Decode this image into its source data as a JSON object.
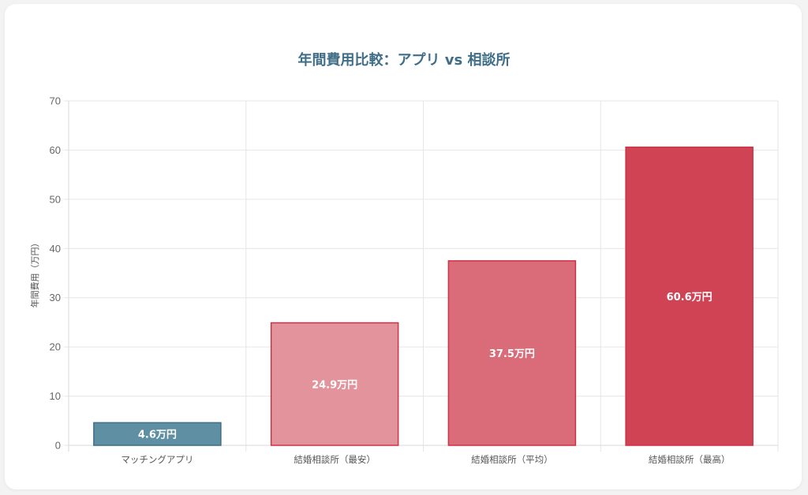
{
  "chart_data": {
    "type": "bar",
    "title": "年間費用比較：アプリ vs 相談所",
    "xlabel": "",
    "ylabel": "年間費用（万円）",
    "ylim": [
      0,
      70
    ],
    "yticks": [
      0,
      10,
      20,
      30,
      40,
      50,
      60,
      70
    ],
    "grid": true,
    "legend": null,
    "categories": [
      "マッチングアプリ",
      "結婚相談所（最安）",
      "結婚相談所（平均）",
      "結婚相談所（最高）"
    ],
    "values": [
      4.6,
      24.9,
      37.5,
      60.6
    ],
    "value_labels": [
      "4.6万円",
      "24.9万円",
      "37.5万円",
      "60.6万円"
    ],
    "colors": [
      "#5f8fa3",
      "#e3939c",
      "#da6b79",
      "#d04355"
    ],
    "border_colors": [
      "#3f6e86",
      "#cc3344",
      "#cc3344",
      "#cc3344"
    ]
  },
  "title_color": "#3f6e86"
}
